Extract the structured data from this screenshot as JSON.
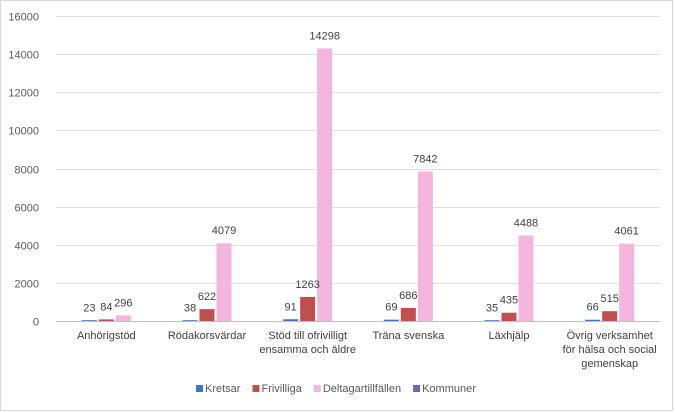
{
  "chart_data": {
    "type": "bar",
    "categories": [
      [
        "Anhörigstöd"
      ],
      [
        "Rödakorsvärdar"
      ],
      [
        "Stöd till ofrivilligt",
        "ensamma och äldre"
      ],
      [
        "Träna svenska"
      ],
      [
        "Läxhjälp"
      ],
      [
        "Övrig verksamhet",
        "för hälsa och social",
        "gemenskap"
      ]
    ],
    "series": [
      {
        "name": "Kretsar",
        "color": "#4472c4",
        "values": [
          23,
          38,
          91,
          69,
          35,
          66
        ]
      },
      {
        "name": "Frivilliga",
        "color": "#c0504d",
        "values": [
          84,
          622,
          1263,
          686,
          435,
          515
        ]
      },
      {
        "name": "Deltagartillfällen",
        "color": "#f4b6df",
        "values": [
          296,
          4079,
          14298,
          7842,
          4488,
          4061
        ]
      },
      {
        "name": "Kommuner",
        "color": "#7f5fa6",
        "values": [
          null,
          null,
          null,
          null,
          null,
          null
        ]
      }
    ],
    "ylim": [
      0,
      16000
    ],
    "yticks": [
      0,
      2000,
      4000,
      6000,
      8000,
      10000,
      12000,
      14000,
      16000
    ],
    "grid": true,
    "legend_position": "bottom",
    "data_labels": true
  }
}
